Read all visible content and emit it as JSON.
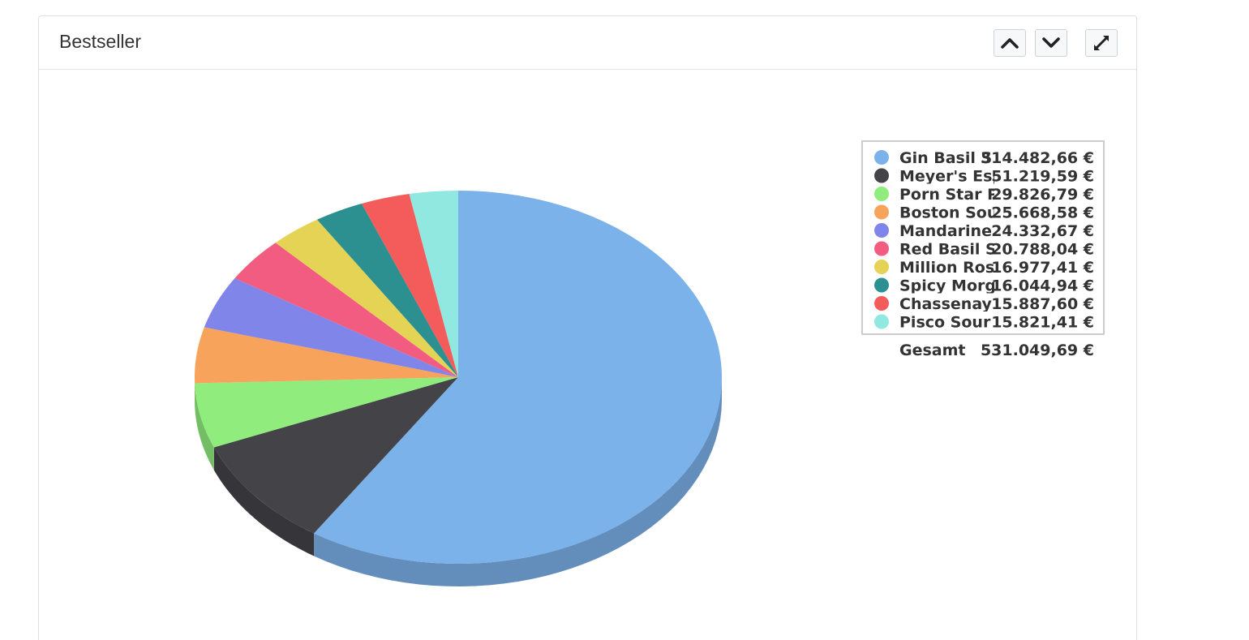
{
  "panel": {
    "title": "Bestseller"
  },
  "icons": {
    "collapse_up": "chevron-up-icon",
    "collapse_down": "chevron-down-icon",
    "expand": "expand-arrows-icon"
  },
  "chart_data": {
    "type": "pie",
    "title": "Bestseller",
    "legend_position": "right",
    "series": [
      {
        "name": "Gin Basil S",
        "value": 314482.66,
        "label": "314.482,66 €",
        "color": "#7cb2ea"
      },
      {
        "name": "Meyer's Esp",
        "value": 51219.59,
        "label": "51.219,59 €",
        "color": "#434348"
      },
      {
        "name": "Porn Star Pu",
        "value": 29826.79,
        "label": "29.826,79 €",
        "color": "#90ed7d"
      },
      {
        "name": "Boston Sour",
        "value": 25668.58,
        "label": "25.668,58 €",
        "color": "#f7a35c"
      },
      {
        "name": "Mandarine N",
        "value": 24332.67,
        "label": "24.332,67 €",
        "color": "#8085e9"
      },
      {
        "name": "Red Basil Sn",
        "value": 20788.04,
        "label": "20.788,04 €",
        "color": "#f15c80"
      },
      {
        "name": "Million Rose",
        "value": 16977.41,
        "label": "16.977,41 €",
        "color": "#e4d354"
      },
      {
        "name": "Spicy Morge",
        "value": 16044.94,
        "label": "16.044,94 €",
        "color": "#2b908f"
      },
      {
        "name": "Chassenay (",
        "value": 15887.6,
        "label": "15.887,60 €",
        "color": "#f45b5b"
      },
      {
        "name": "Pisco Sour -",
        "value": 15821.41,
        "label": "15.821,41 €",
        "color": "#91e8e1"
      }
    ],
    "total": {
      "label": "Gesamt",
      "value": 531049.69,
      "value_label": "531.049,69 €"
    }
  }
}
